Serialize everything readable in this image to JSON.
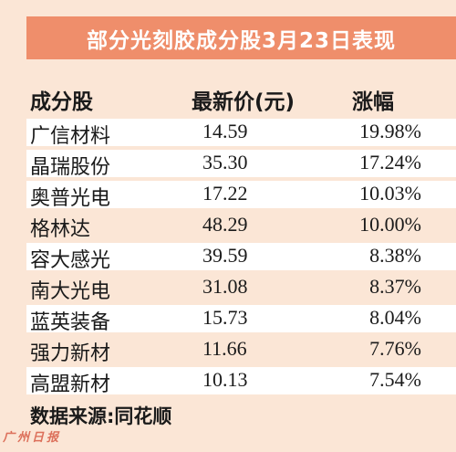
{
  "title": "部分光刻胶成分股3月23日表现",
  "columns": {
    "name": "成分股",
    "price": "最新价(元)",
    "change": "涨幅"
  },
  "rows": [
    {
      "name": "广信材料",
      "price": "14.59",
      "change": "19.98%"
    },
    {
      "name": "晶瑞股份",
      "price": "35.30",
      "change": "17.24%"
    },
    {
      "name": "奥普光电",
      "price": "17.22",
      "change": "10.03%"
    },
    {
      "name": "格林达",
      "price": "48.29",
      "change": "10.00%"
    },
    {
      "name": "容大感光",
      "price": "39.59",
      "change": "8.38%"
    },
    {
      "name": "南大光电",
      "price": "31.08",
      "change": "8.37%"
    },
    {
      "name": "蓝英装备",
      "price": "15.73",
      "change": "8.04%"
    },
    {
      "name": "强力新材",
      "price": "11.66",
      "change": "7.76%"
    },
    {
      "name": "高盟新材",
      "price": "10.13",
      "change": "7.54%"
    }
  ],
  "source": "数据来源:同花顺",
  "logo": "广州日报",
  "colors": {
    "title_bg": "#ef8e6b",
    "page_bg": "#fbe6d6",
    "row_bg": "#ffffff"
  }
}
